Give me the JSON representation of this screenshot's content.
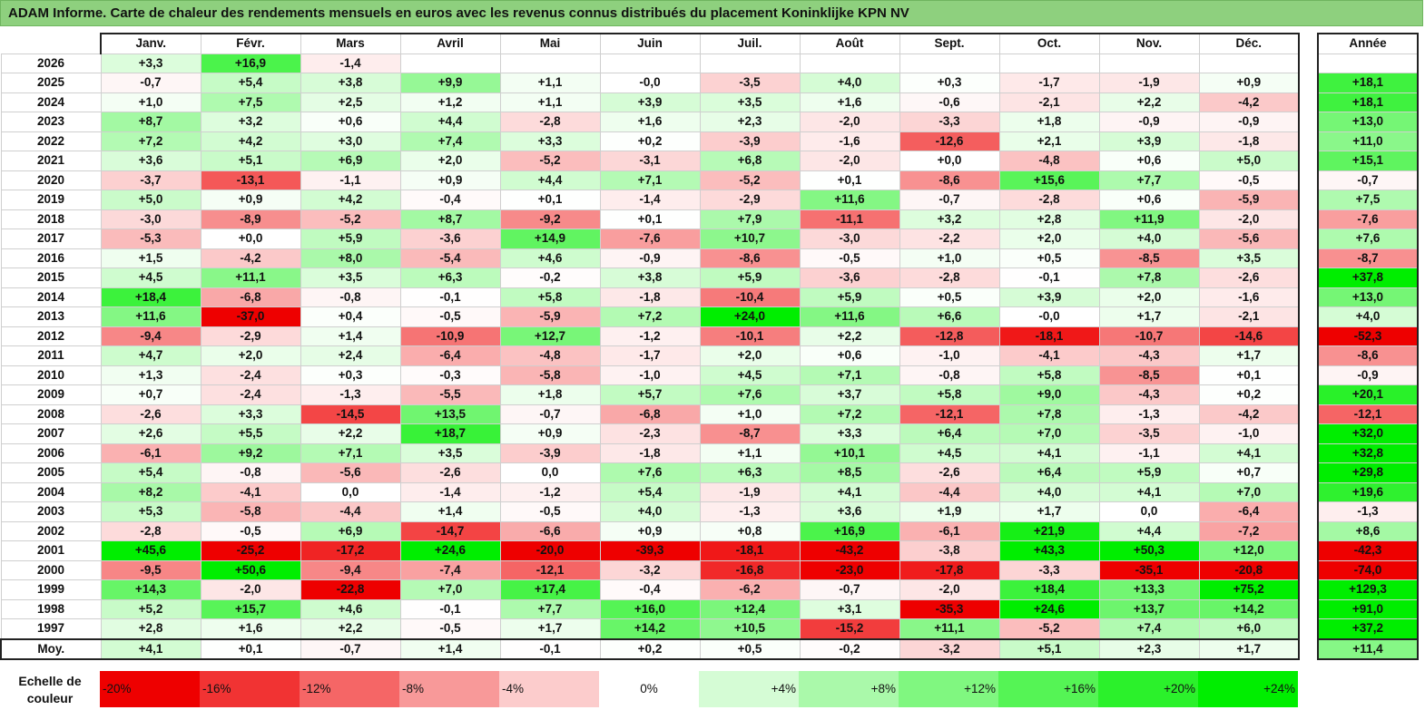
{
  "title": "ADAM Informe. Carte de chaleur des rendements mensuels en euros avec les revenus connus distribués du placement Koninklijke KPN NV",
  "chart_data": {
    "type": "heatmap",
    "title": "ADAM Informe. Carte de chaleur des rendements mensuels en euros avec les revenus connus distribués du placement Koninklijke KPN NV",
    "months": [
      "Janv.",
      "Févr.",
      "Mars",
      "Avril",
      "Mai",
      "Juin",
      "Juil.",
      "Août",
      "Sept.",
      "Oct.",
      "Nov.",
      "Déc."
    ],
    "annual_header": "Année",
    "rows": [
      {
        "year": "2026",
        "months": [
          "+3,3",
          "+16,9",
          "-1,4",
          "",
          "",
          "",
          "",
          "",
          "",
          "",
          "",
          ""
        ],
        "annual": ""
      },
      {
        "year": "2025",
        "months": [
          "-0,7",
          "+5,4",
          "+3,8",
          "+9,9",
          "+1,1",
          "-0,0",
          "-3,5",
          "+4,0",
          "+0,3",
          "-1,7",
          "-1,9",
          "+0,9"
        ],
        "annual": "+18,1"
      },
      {
        "year": "2024",
        "months": [
          "+1,0",
          "+7,5",
          "+2,5",
          "+1,2",
          "+1,1",
          "+3,9",
          "+3,5",
          "+1,6",
          "-0,6",
          "-2,1",
          "+2,2",
          "-4,2"
        ],
        "annual": "+18,1"
      },
      {
        "year": "2023",
        "months": [
          "+8,7",
          "+3,2",
          "+0,6",
          "+4,4",
          "-2,8",
          "+1,6",
          "+2,3",
          "-2,0",
          "-3,3",
          "+1,8",
          "-0,9",
          "-0,9"
        ],
        "annual": "+13,0"
      },
      {
        "year": "2022",
        "months": [
          "+7,2",
          "+4,2",
          "+3,0",
          "+7,4",
          "+3,3",
          "+0,2",
          "-3,9",
          "-1,6",
          "-12,6",
          "+2,1",
          "+3,9",
          "-1,8"
        ],
        "annual": "+11,0"
      },
      {
        "year": "2021",
        "months": [
          "+3,6",
          "+5,1",
          "+6,9",
          "+2,0",
          "-5,2",
          "-3,1",
          "+6,8",
          "-2,0",
          "+0,0",
          "-4,8",
          "+0,6",
          "+5,0"
        ],
        "annual": "+15,1"
      },
      {
        "year": "2020",
        "months": [
          "-3,7",
          "-13,1",
          "-1,1",
          "+0,9",
          "+4,4",
          "+7,1",
          "-5,2",
          "+0,1",
          "-8,6",
          "+15,6",
          "+7,7",
          "-0,5"
        ],
        "annual": "-0,7"
      },
      {
        "year": "2019",
        "months": [
          "+5,0",
          "+0,9",
          "+4,2",
          "-0,4",
          "+0,1",
          "-1,4",
          "-2,9",
          "+11,6",
          "-0,7",
          "-2,8",
          "+0,6",
          "-5,9"
        ],
        "annual": "+7,5"
      },
      {
        "year": "2018",
        "months": [
          "-3,0",
          "-8,9",
          "-5,2",
          "+8,7",
          "-9,2",
          "+0,1",
          "+7,9",
          "-11,1",
          "+3,2",
          "+2,8",
          "+11,9",
          "-2,0"
        ],
        "annual": "-7,6"
      },
      {
        "year": "2017",
        "months": [
          "-5,3",
          "+0,0",
          "+5,9",
          "-3,6",
          "+14,9",
          "-7,6",
          "+10,7",
          "-3,0",
          "-2,2",
          "+2,0",
          "+4,0",
          "-5,6"
        ],
        "annual": "+7,6"
      },
      {
        "year": "2016",
        "months": [
          "+1,5",
          "-4,2",
          "+8,0",
          "-5,4",
          "+4,6",
          "-0,9",
          "-8,6",
          "-0,5",
          "+1,0",
          "+0,5",
          "-8,5",
          "+3,5"
        ],
        "annual": "-8,7"
      },
      {
        "year": "2015",
        "months": [
          "+4,5",
          "+11,1",
          "+3,5",
          "+6,3",
          "-0,2",
          "+3,8",
          "+5,9",
          "-3,6",
          "-2,8",
          "-0,1",
          "+7,8",
          "-2,6"
        ],
        "annual": "+37,8"
      },
      {
        "year": "2014",
        "months": [
          "+18,4",
          "-6,8",
          "-0,8",
          "-0,1",
          "+5,8",
          "-1,8",
          "-10,4",
          "+5,9",
          "+0,5",
          "+3,9",
          "+2,0",
          "-1,6"
        ],
        "annual": "+13,0"
      },
      {
        "year": "2013",
        "months": [
          "+11,6",
          "-37,0",
          "+0,4",
          "-0,5",
          "-5,9",
          "+7,2",
          "+24,0",
          "+11,6",
          "+6,6",
          "-0,0",
          "+1,7",
          "-2,1"
        ],
        "annual": "+4,0"
      },
      {
        "year": "2012",
        "months": [
          "-9,4",
          "-2,9",
          "+1,4",
          "-10,9",
          "+12,7",
          "-1,2",
          "-10,1",
          "+2,2",
          "-12,8",
          "-18,1",
          "-10,7",
          "-14,6"
        ],
        "annual": "-52,3"
      },
      {
        "year": "2011",
        "months": [
          "+4,7",
          "+2,0",
          "+2,4",
          "-6,4",
          "-4,8",
          "-1,7",
          "+2,0",
          "+0,6",
          "-1,0",
          "-4,1",
          "-4,3",
          "+1,7"
        ],
        "annual": "-8,6"
      },
      {
        "year": "2010",
        "months": [
          "+1,3",
          "-2,4",
          "+0,3",
          "-0,3",
          "-5,8",
          "-1,0",
          "+4,5",
          "+7,1",
          "-0,8",
          "+5,8",
          "-8,5",
          "+0,1"
        ],
        "annual": "-0,9"
      },
      {
        "year": "2009",
        "months": [
          "+0,7",
          "-2,4",
          "-1,3",
          "-5,5",
          "+1,8",
          "+5,7",
          "+7,6",
          "+3,7",
          "+5,8",
          "+9,0",
          "-4,3",
          "+0,2"
        ],
        "annual": "+20,1"
      },
      {
        "year": "2008",
        "months": [
          "-2,6",
          "+3,3",
          "-14,5",
          "+13,5",
          "-0,7",
          "-6,8",
          "+1,0",
          "+7,2",
          "-12,1",
          "+7,8",
          "-1,3",
          "-4,2"
        ],
        "annual": "-12,1"
      },
      {
        "year": "2007",
        "months": [
          "+2,6",
          "+5,5",
          "+2,2",
          "+18,7",
          "+0,9",
          "-2,3",
          "-8,7",
          "+3,3",
          "+6,4",
          "+7,0",
          "-3,5",
          "-1,0"
        ],
        "annual": "+32,0"
      },
      {
        "year": "2006",
        "months": [
          "-6,1",
          "+9,2",
          "+7,1",
          "+3,5",
          "-3,9",
          "-1,8",
          "+1,1",
          "+10,1",
          "+4,5",
          "+4,1",
          "-1,1",
          "+4,1"
        ],
        "annual": "+32,8"
      },
      {
        "year": "2005",
        "months": [
          "+5,4",
          "-0,8",
          "-5,6",
          "-2,6",
          "0,0",
          "+7,6",
          "+6,3",
          "+8,5",
          "-2,6",
          "+6,4",
          "+5,9",
          "+0,7"
        ],
        "annual": "+29,8"
      },
      {
        "year": "2004",
        "months": [
          "+8,2",
          "-4,1",
          "0,0",
          "-1,4",
          "-1,2",
          "+5,4",
          "-1,9",
          "+4,1",
          "-4,4",
          "+4,0",
          "+4,1",
          "+7,0"
        ],
        "annual": "+19,6"
      },
      {
        "year": "2003",
        "months": [
          "+5,3",
          "-5,8",
          "-4,4",
          "+1,4",
          "-0,5",
          "+4,0",
          "-1,3",
          "+3,6",
          "+1,9",
          "+1,7",
          "0,0",
          "-6,4"
        ],
        "annual": "-1,3"
      },
      {
        "year": "2002",
        "months": [
          "-2,8",
          "-0,5",
          "+6,9",
          "-14,7",
          "-6,6",
          "+0,9",
          "+0,8",
          "+16,9",
          "-6,1",
          "+21,9",
          "+4,4",
          "-7,2"
        ],
        "annual": "+8,6"
      },
      {
        "year": "2001",
        "months": [
          "+45,6",
          "-25,2",
          "-17,2",
          "+24,6",
          "-20,0",
          "-39,3",
          "-18,1",
          "-43,2",
          "-3,8",
          "+43,3",
          "+50,3",
          "+12,0"
        ],
        "annual": "-42,3"
      },
      {
        "year": "2000",
        "months": [
          "-9,5",
          "+50,6",
          "-9,4",
          "-7,4",
          "-12,1",
          "-3,2",
          "-16,8",
          "-23,0",
          "-17,8",
          "-3,3",
          "-35,1",
          "-20,8"
        ],
        "annual": "-74,0"
      },
      {
        "year": "1999",
        "months": [
          "+14,3",
          "-2,0",
          "-22,8",
          "+7,0",
          "+17,4",
          "-0,4",
          "-6,2",
          "-0,7",
          "-2,0",
          "+18,4",
          "+13,3",
          "+75,2"
        ],
        "annual": "+129,3"
      },
      {
        "year": "1998",
        "months": [
          "+5,2",
          "+15,7",
          "+4,6",
          "-0,1",
          "+7,7",
          "+16,0",
          "+12,4",
          "+3,1",
          "-35,3",
          "+24,6",
          "+13,7",
          "+14,2"
        ],
        "annual": "+91,0"
      },
      {
        "year": "1997",
        "months": [
          "+2,8",
          "+1,6",
          "+2,2",
          "-0,5",
          "+1,7",
          "+14,2",
          "+10,5",
          "-15,2",
          "+11,1",
          "-5,2",
          "+7,4",
          "+6,0"
        ],
        "annual": "+37,2"
      }
    ],
    "average": {
      "label": "Moy.",
      "months": [
        "+4,1",
        "+0,1",
        "-0,7",
        "+1,4",
        "-0,1",
        "+0,2",
        "+0,5",
        "-0,2",
        "-3,2",
        "+5,1",
        "+2,3",
        "+1,7"
      ],
      "annual": "+11,4"
    },
    "scale": {
      "label_line1": "Echelle de",
      "label_line2": "couleur",
      "steps": [
        {
          "text": "-20%",
          "value": -20
        },
        {
          "text": "-16%",
          "value": -16
        },
        {
          "text": "-12%",
          "value": -12
        },
        {
          "text": "-8%",
          "value": -8
        },
        {
          "text": "-4%",
          "value": -4
        },
        {
          "text": "0%",
          "value": 0
        },
        {
          "text": "+4%",
          "value": 4
        },
        {
          "text": "+8%",
          "value": 8
        },
        {
          "text": "+12%",
          "value": 12
        },
        {
          "text": "+16%",
          "value": 16
        },
        {
          "text": "+20%",
          "value": 20
        },
        {
          "text": "+24%",
          "value": 24
        }
      ]
    }
  }
}
